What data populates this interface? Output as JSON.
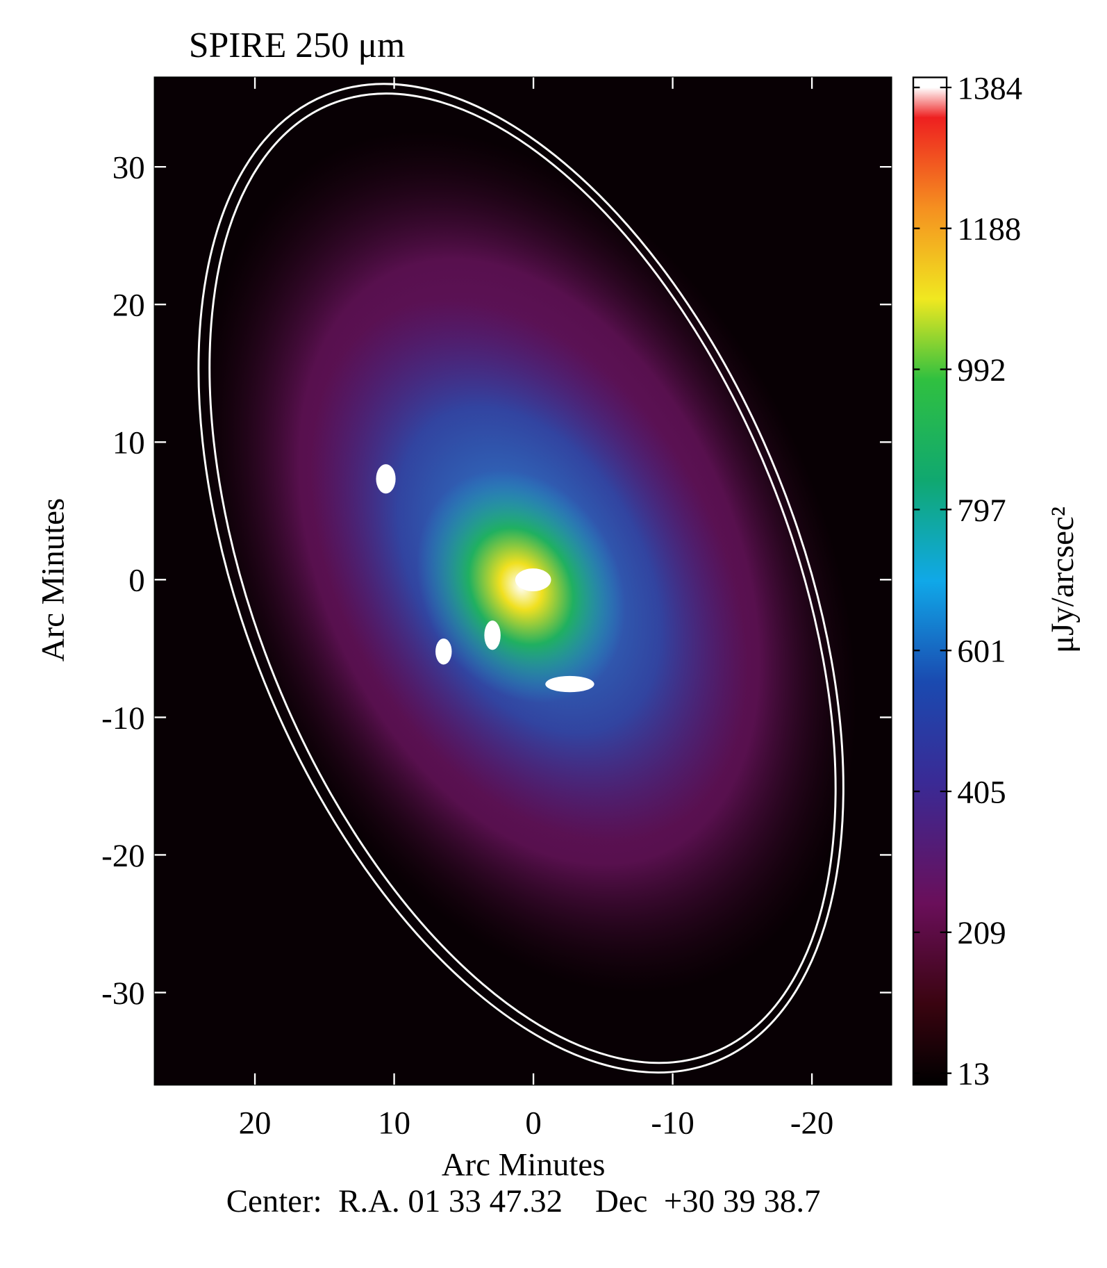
{
  "chart_data": {
    "type": "image",
    "title": "SPIRE 250 μm",
    "x_label": "Arc Minutes",
    "y_label": "Arc Minutes",
    "footer": "Center:  R.A. 01 33 47.32    Dec  +30 39 38.7",
    "xlim": [
      27.2,
      -25.7
    ],
    "xticks": [
      20,
      10,
      0,
      -10,
      -20
    ],
    "ylim": [
      -36.7,
      36.5
    ],
    "yticks": [
      -30,
      -20,
      -10,
      0,
      10,
      20,
      30
    ],
    "colorbar": {
      "label": "μJy/arcsec²",
      "lim": [
        -3,
        1398
      ],
      "ticks": [
        13,
        209,
        405,
        601,
        797,
        992,
        1188,
        1384
      ]
    }
  }
}
